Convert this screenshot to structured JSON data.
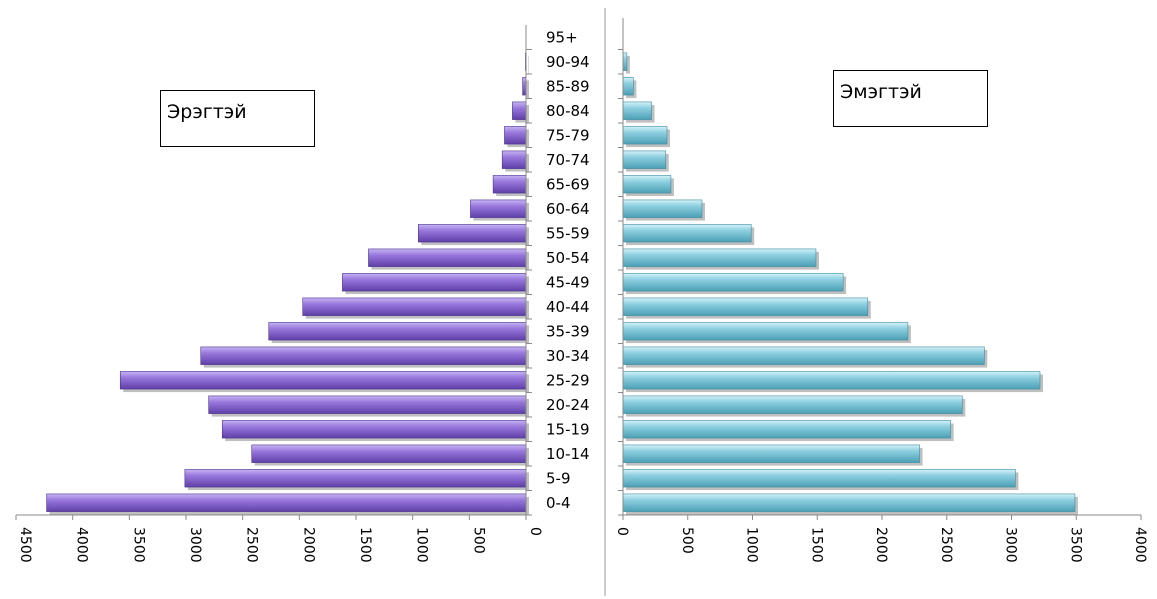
{
  "chart_data": {
    "type": "bar",
    "orientation": "horizontal",
    "layout": "population-pyramid",
    "categories": [
      "0-4",
      "5-9",
      "10-14",
      "15-19",
      "20-24",
      "25-29",
      "30-34",
      "35-39",
      "40-44",
      "45-49",
      "50-54",
      "55-59",
      "60-64",
      "65-69",
      "70-74",
      "75-79",
      "80-84",
      "85-89",
      "90-94",
      "95+"
    ],
    "series": [
      {
        "name": "Эрэгтэй",
        "color": "#8a6bd0",
        "values": [
          4230,
          3010,
          2420,
          2680,
          2800,
          3580,
          2870,
          2270,
          1970,
          1620,
          1390,
          950,
          490,
          290,
          210,
          190,
          120,
          30,
          5,
          0
        ],
        "xlim": [
          4500,
          0
        ],
        "ticks": [
          "4500",
          "4000",
          "3500",
          "3000",
          "2500",
          "2000",
          "1500",
          "1000",
          "500",
          "0"
        ]
      },
      {
        "name": "Эмэгтэй",
        "color": "#7fc8d8",
        "values": [
          3490,
          3030,
          2290,
          2530,
          2620,
          3220,
          2790,
          2200,
          1890,
          1700,
          1490,
          990,
          610,
          370,
          330,
          340,
          220,
          80,
          30,
          0
        ],
        "xlim": [
          0,
          4000
        ],
        "ticks": [
          "0",
          "500",
          "1000",
          "1500",
          "2000",
          "2500",
          "3000",
          "3500",
          "4000"
        ]
      }
    ],
    "grid": false,
    "legend": "inside-labels"
  },
  "legend": {
    "male_label": "Эрэгтэй",
    "female_label": "Эмэгтэй"
  }
}
